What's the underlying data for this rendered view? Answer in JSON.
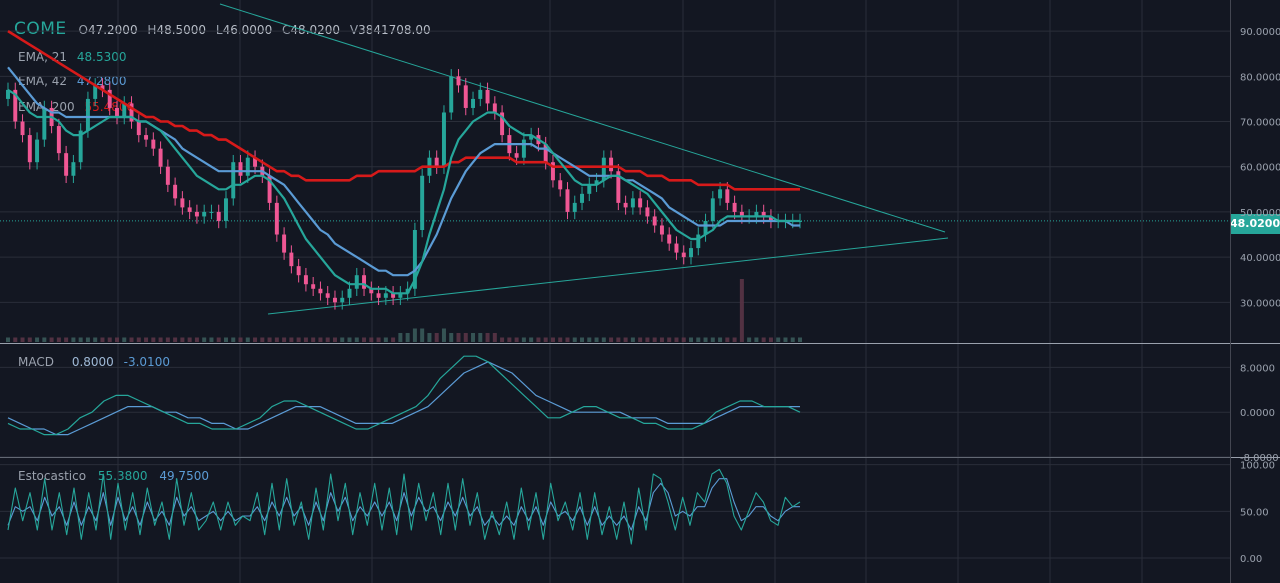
{
  "symbol": "COME",
  "ohlcv": {
    "o_label": "O",
    "o": "47.2000",
    "h_label": "H",
    "h": "48.5000",
    "l_label": "L",
    "l": "46.0000",
    "c_label": "C",
    "c": "48.0200",
    "v_label": "V",
    "v": "3841708.00"
  },
  "last_price": "48.0200",
  "ema_legend": [
    {
      "label": "EMA, 21",
      "value": "48.5300",
      "color": "#26a69a"
    },
    {
      "label": "EMA, 42",
      "value": "47.2800",
      "color": "#5b9bd5"
    },
    {
      "label": "EMA, 200",
      "value": "55.4800",
      "color": "#d71a1a"
    }
  ],
  "macd_legend": {
    "label": "MACD",
    "v1": "0.8000",
    "v2": "-3.0100"
  },
  "stoch_legend": {
    "label": "Estocastico",
    "v1": "55.3800",
    "v2": "49.7500"
  },
  "colors": {
    "background": "#131722",
    "grid": "#2a2e39",
    "up": "#26a69a",
    "down": "#ef5794",
    "ema21": "#26a69a",
    "ema42": "#5b9bd5",
    "ema200": "#d71a1a",
    "trendline": "#26a69a"
  },
  "chart_data": [
    {
      "type": "candlestick",
      "name": "price",
      "yticks": [
        "30.0000",
        "40.0000",
        "50.0000",
        "60.0000",
        "70.0000",
        "80.0000",
        "90.0000"
      ],
      "ylim": [
        21,
        96
      ],
      "xlim": [
        0,
        115
      ],
      "closes": [
        77,
        70,
        67,
        61,
        66,
        73,
        69,
        63,
        58,
        61,
        68,
        75,
        78,
        77,
        73,
        71,
        74,
        70,
        67,
        66,
        64,
        60,
        56,
        53,
        51,
        50,
        49,
        50,
        50,
        48,
        53,
        61,
        58,
        62,
        60,
        58,
        52,
        45,
        41,
        38,
        36,
        34,
        33,
        32,
        31,
        30,
        31,
        33,
        36,
        33,
        32,
        31,
        32,
        31,
        32,
        33,
        46,
        58,
        62,
        60,
        72,
        80,
        78,
        73,
        75,
        77,
        74,
        72,
        67,
        63,
        62,
        66,
        67,
        65,
        61,
        57,
        55,
        50,
        52,
        54,
        56,
        57,
        62,
        59,
        52,
        51,
        53,
        51,
        49,
        47,
        45,
        43,
        41,
        40,
        42,
        45,
        48,
        53,
        55,
        52,
        50,
        49,
        49,
        50,
        49,
        48,
        48,
        48,
        48,
        48
      ],
      "last_close": 48.02,
      "ema21": [
        77,
        76,
        74,
        72,
        71,
        71,
        71,
        70,
        68,
        67,
        67,
        68,
        69,
        70,
        71,
        71,
        71,
        71,
        70,
        70,
        69,
        68,
        66,
        64,
        62,
        60,
        58,
        57,
        56,
        55,
        55,
        56,
        56,
        57,
        58,
        58,
        57,
        55,
        53,
        50,
        47,
        44,
        42,
        40,
        38,
        36,
        35,
        34,
        34,
        34,
        33,
        33,
        33,
        32,
        32,
        32,
        35,
        39,
        45,
        50,
        55,
        62,
        66,
        68,
        70,
        71,
        72,
        72,
        71,
        69,
        68,
        67,
        67,
        66,
        65,
        63,
        61,
        59,
        57,
        56,
        56,
        56,
        57,
        58,
        58,
        57,
        56,
        55,
        54,
        52,
        50,
        48,
        46,
        45,
        44,
        44,
        45,
        46,
        48,
        49,
        49,
        49,
        49,
        49,
        49,
        49,
        48,
        48,
        48,
        48
      ],
      "ema42": [
        82,
        80,
        78,
        76,
        74,
        73,
        72,
        72,
        71,
        71,
        71,
        71,
        71,
        71,
        71,
        71,
        71,
        71,
        70,
        70,
        69,
        68,
        67,
        66,
        64,
        63,
        62,
        61,
        60,
        59,
        59,
        59,
        59,
        59,
        59,
        59,
        58,
        57,
        56,
        54,
        52,
        50,
        48,
        46,
        45,
        43,
        42,
        41,
        40,
        39,
        38,
        37,
        37,
        36,
        36,
        36,
        37,
        39,
        42,
        45,
        49,
        53,
        56,
        59,
        61,
        63,
        64,
        65,
        65,
        65,
        65,
        65,
        65,
        64,
        64,
        63,
        62,
        61,
        60,
        59,
        58,
        58,
        58,
        58,
        58,
        57,
        57,
        56,
        55,
        54,
        53,
        51,
        50,
        49,
        48,
        47,
        47,
        47,
        47,
        48,
        48,
        48,
        48,
        48,
        48,
        48,
        48,
        48,
        47,
        47
      ],
      "ema200": [
        90,
        89,
        88,
        87,
        86,
        85,
        84,
        83,
        82,
        81,
        80,
        79,
        78,
        77,
        76,
        75,
        74,
        73,
        72,
        71,
        71,
        70,
        70,
        69,
        69,
        68,
        68,
        67,
        67,
        66,
        66,
        65,
        64,
        63,
        62,
        61,
        60,
        59,
        59,
        58,
        58,
        57,
        57,
        57,
        57,
        57,
        57,
        57,
        58,
        58,
        58,
        59,
        59,
        59,
        59,
        59,
        59,
        60,
        60,
        60,
        60,
        61,
        61,
        62,
        62,
        62,
        62,
        62,
        62,
        62,
        61,
        61,
        61,
        61,
        61,
        60,
        60,
        60,
        60,
        60,
        60,
        60,
        60,
        60,
        60,
        59,
        59,
        59,
        58,
        58,
        58,
        57,
        57,
        57,
        57,
        56,
        56,
        56,
        56,
        56,
        55,
        55,
        55,
        55,
        55,
        55,
        55,
        55,
        55,
        55
      ],
      "volume": [
        1,
        1,
        1,
        1,
        1,
        1,
        1,
        1,
        1,
        1,
        1,
        1,
        1,
        1,
        1,
        1,
        1,
        1,
        1,
        1,
        1,
        1,
        1,
        1,
        1,
        1,
        1,
        1,
        1,
        1,
        1,
        1,
        1,
        1,
        1,
        1,
        1,
        1,
        1,
        1,
        1,
        1,
        1,
        1,
        1,
        1,
        1,
        1,
        1,
        1,
        1,
        1,
        1,
        1,
        2,
        2,
        3,
        3,
        2,
        2,
        3,
        2,
        2,
        2,
        2,
        2,
        2,
        2,
        1,
        1,
        1,
        1,
        1,
        1,
        1,
        1,
        1,
        1,
        1,
        1,
        1,
        1,
        1,
        1,
        1,
        1,
        1,
        1,
        1,
        1,
        1,
        1,
        1,
        1,
        1,
        1,
        1,
        1,
        1,
        1,
        1,
        14,
        1,
        1,
        1,
        1,
        1,
        1,
        1,
        1
      ]
    },
    {
      "type": "line",
      "name": "MACD",
      "yticks": [
        "-8.0000",
        "0.0000",
        "8.0000"
      ],
      "ylim": [
        -8,
        12
      ],
      "macd": [
        -2,
        -3,
        -3,
        -4,
        -4,
        -3,
        -1,
        0,
        2,
        3,
        3,
        2,
        1,
        0,
        -1,
        -2,
        -2,
        -3,
        -3,
        -3,
        -2,
        -1,
        1,
        2,
        2,
        1,
        0,
        -1,
        -2,
        -3,
        -3,
        -2,
        -1,
        0,
        1,
        3,
        6,
        8,
        10,
        10,
        9,
        7,
        5,
        3,
        1,
        -1,
        -1,
        0,
        1,
        1,
        0,
        -1,
        -1,
        -2,
        -2,
        -3,
        -3,
        -3,
        -2,
        0,
        1,
        2,
        2,
        1,
        1,
        1,
        0
      ],
      "signal": [
        -1,
        -2,
        -3,
        -3,
        -4,
        -4,
        -3,
        -2,
        -1,
        0,
        1,
        1,
        1,
        0,
        0,
        -1,
        -1,
        -2,
        -2,
        -3,
        -3,
        -2,
        -1,
        0,
        1,
        1,
        1,
        0,
        -1,
        -2,
        -2,
        -2,
        -2,
        -1,
        0,
        1,
        3,
        5,
        7,
        8,
        9,
        8,
        7,
        5,
        3,
        2,
        1,
        0,
        0,
        0,
        0,
        0,
        -1,
        -1,
        -1,
        -2,
        -2,
        -2,
        -2,
        -1,
        0,
        1,
        1,
        1,
        1,
        1,
        1
      ]
    },
    {
      "type": "line",
      "name": "Estocastico",
      "yticks": [
        "0.00",
        "50.00",
        "100.00"
      ],
      "ylim": [
        -15,
        105
      ],
      "k": [
        30,
        75,
        40,
        70,
        30,
        85,
        30,
        70,
        25,
        75,
        20,
        70,
        30,
        90,
        20,
        80,
        30,
        70,
        25,
        75,
        35,
        60,
        20,
        85,
        35,
        70,
        30,
        40,
        60,
        30,
        60,
        35,
        45,
        40,
        70,
        25,
        80,
        30,
        85,
        35,
        60,
        20,
        75,
        30,
        90,
        40,
        80,
        25,
        70,
        35,
        80,
        30,
        75,
        25,
        90,
        30,
        80,
        40,
        70,
        25,
        80,
        30,
        85,
        35,
        70,
        20,
        50,
        25,
        60,
        20,
        75,
        30,
        70,
        20,
        80,
        40,
        60,
        30,
        70,
        20,
        70,
        25,
        55,
        20,
        60,
        15,
        75,
        30,
        90,
        85,
        60,
        30,
        65,
        35,
        70,
        60,
        90,
        95,
        80,
        45,
        30,
        50,
        70,
        60,
        40,
        35,
        65,
        55,
        60
      ],
      "d": [
        35,
        55,
        50,
        55,
        40,
        65,
        45,
        55,
        35,
        60,
        35,
        55,
        40,
        70,
        35,
        65,
        40,
        55,
        35,
        60,
        40,
        50,
        35,
        65,
        45,
        55,
        40,
        45,
        50,
        40,
        50,
        40,
        45,
        45,
        55,
        40,
        60,
        45,
        65,
        45,
        55,
        35,
        60,
        40,
        70,
        50,
        65,
        40,
        55,
        45,
        60,
        45,
        60,
        40,
        70,
        45,
        65,
        50,
        55,
        40,
        60,
        45,
        65,
        45,
        55,
        35,
        45,
        35,
        45,
        35,
        55,
        40,
        55,
        35,
        60,
        45,
        50,
        40,
        55,
        35,
        55,
        35,
        45,
        35,
        45,
        30,
        55,
        40,
        70,
        80,
        70,
        45,
        50,
        45,
        55,
        55,
        75,
        85,
        85,
        60,
        40,
        45,
        55,
        55,
        45,
        40,
        50,
        55,
        55
      ]
    }
  ]
}
